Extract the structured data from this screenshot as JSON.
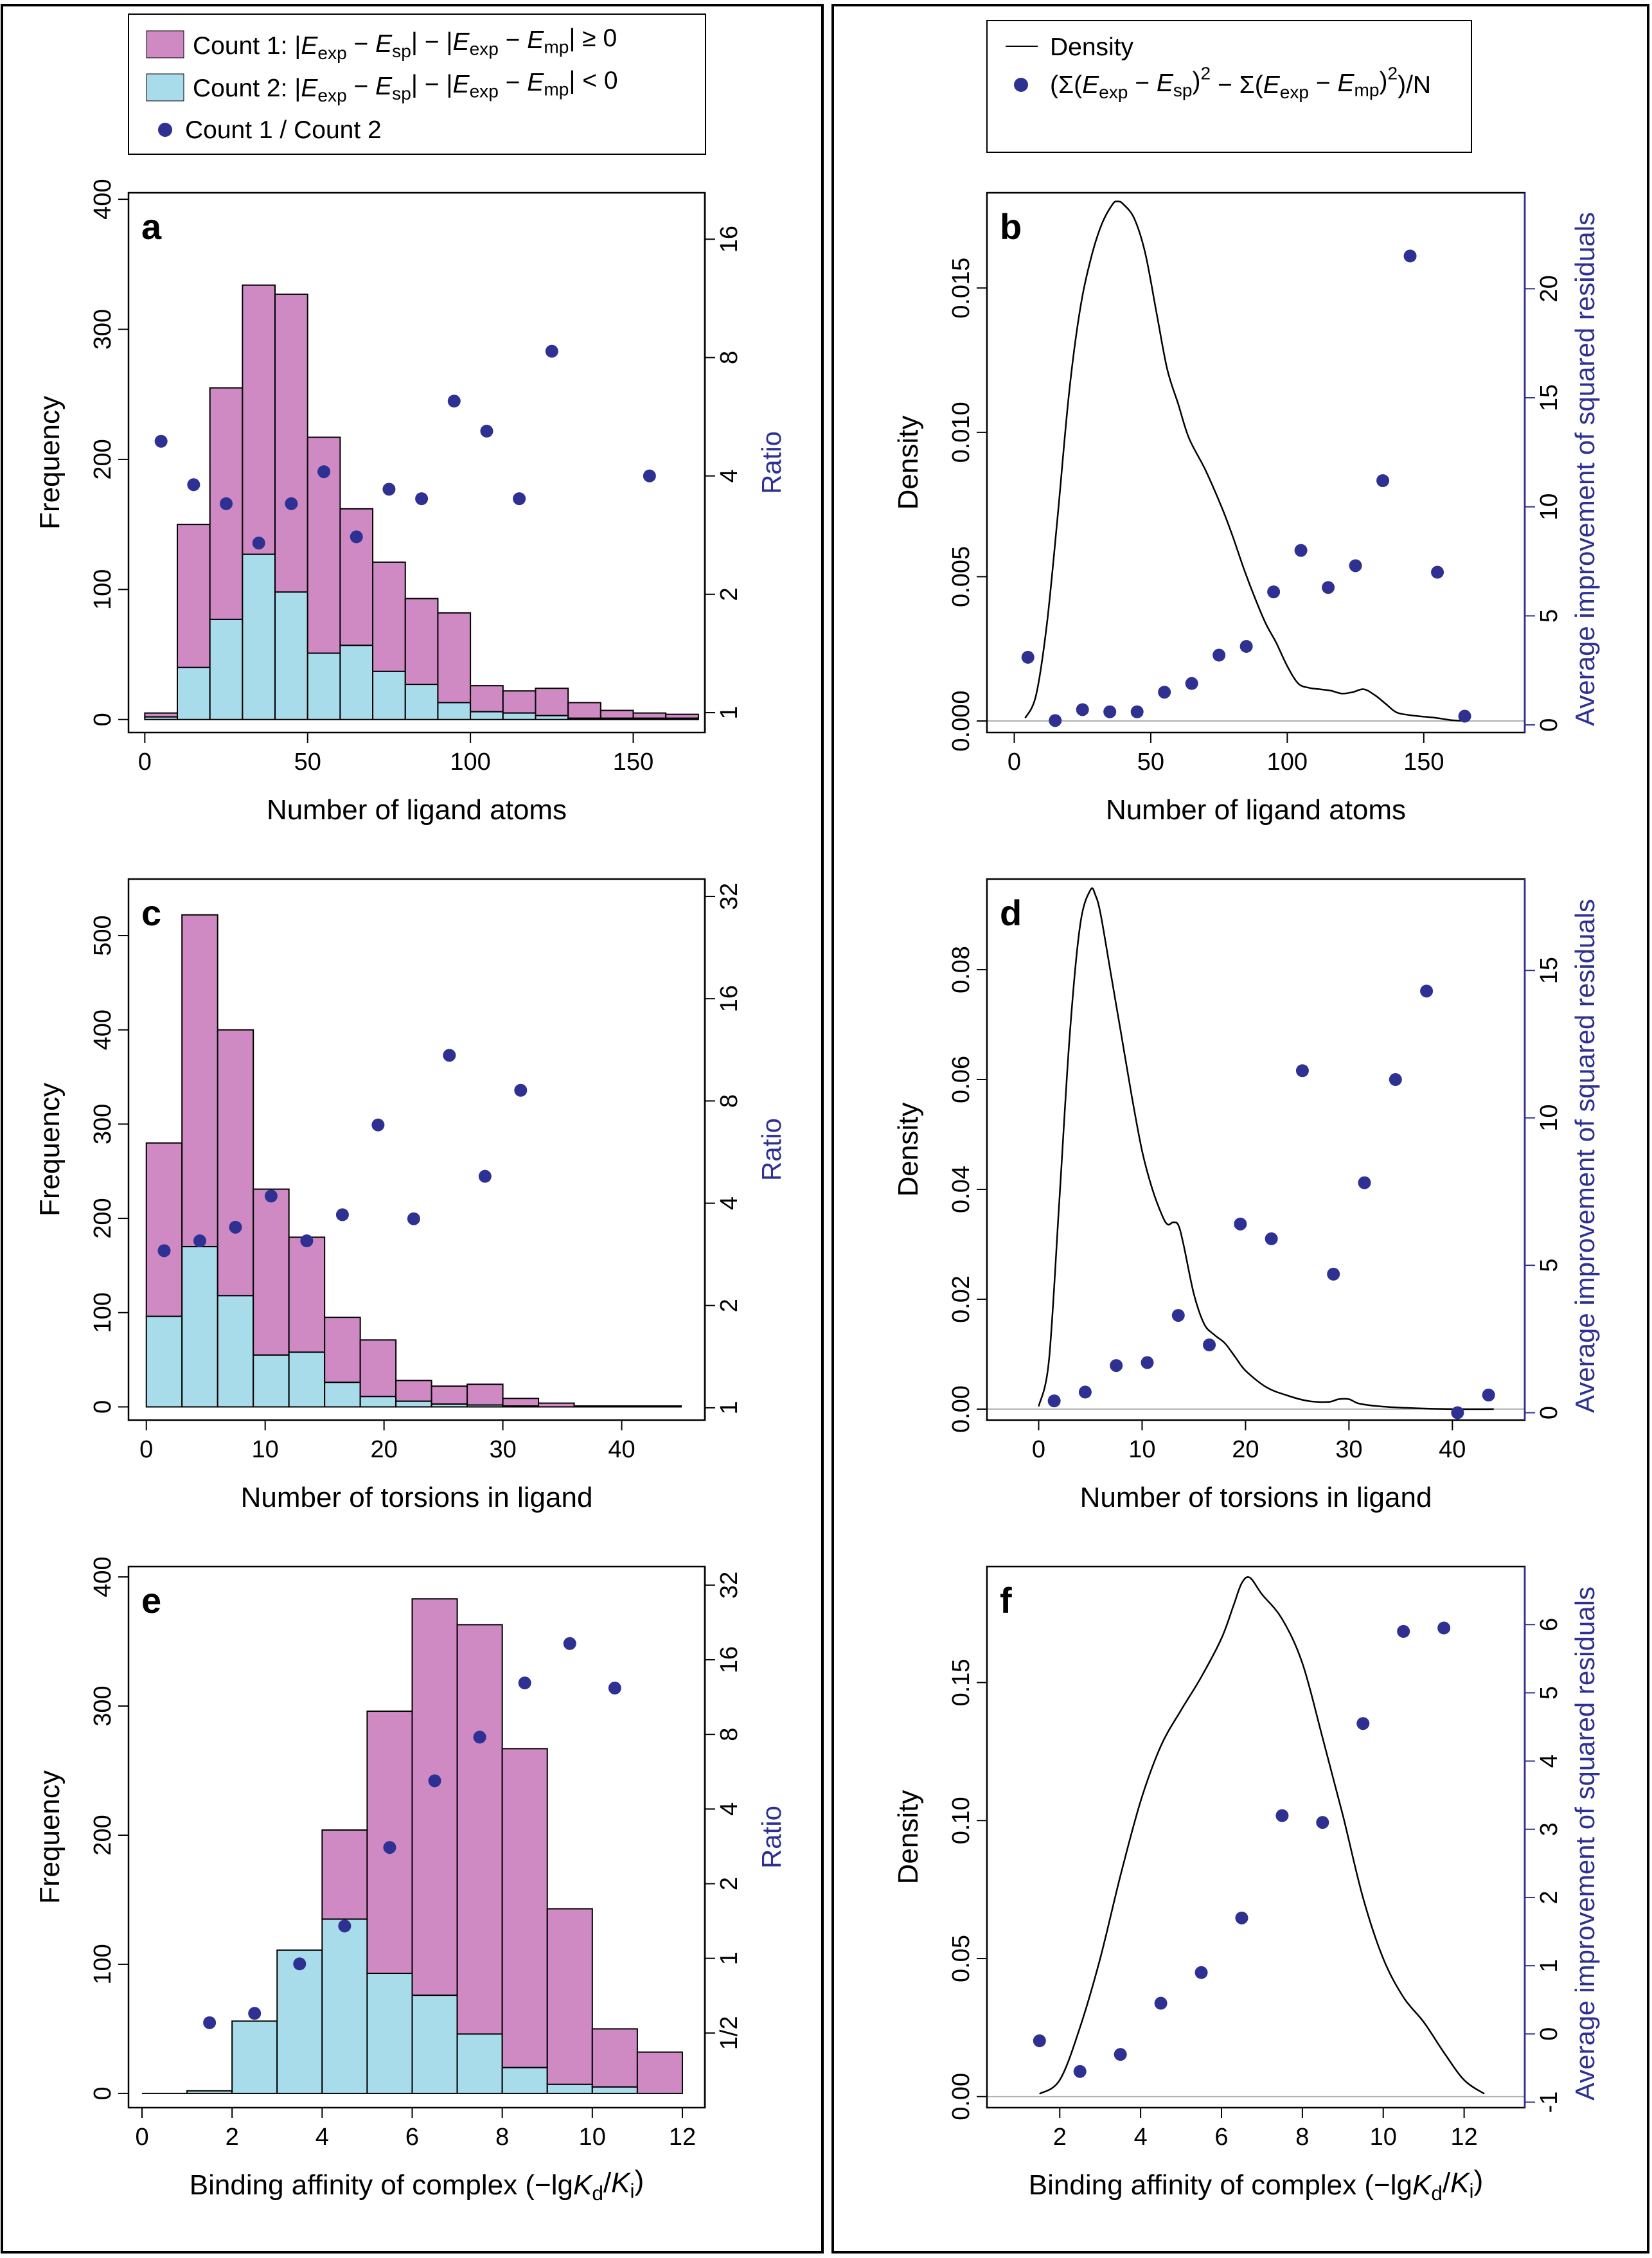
{
  "colors": {
    "count1": "#cf8ac4",
    "count2": "#a9dcea",
    "ratio_point": "#2e3192",
    "density_line": "#000000",
    "right_axis": "#2e3192"
  },
  "legend_left": {
    "count1": "Count 1: |E_exp − E_sp| − |E_exp − E_mp| ≥ 0",
    "count2": "Count 2: |E_exp − E_sp| − |E_exp − E_mp| < 0",
    "ratio": "Count 1 / Count 2"
  },
  "legend_right": {
    "density": "Density",
    "points": "(Σ(E_exp − E_sp)² − Σ(E_exp − E_mp)²)/N"
  },
  "chart_data": [
    {
      "panel": "a",
      "type": "bar",
      "stacked": true,
      "xlabel": "Number of ligand atoms",
      "ylabel": "Frequency",
      "y2label": "Ratio",
      "xlim": [
        -5,
        172
      ],
      "ylim": [
        -10,
        405
      ],
      "x_ticks": [
        0,
        50,
        100,
        150
      ],
      "y_ticks": [
        0,
        100,
        200,
        300,
        400
      ],
      "y2_ticks": [
        1,
        2,
        4,
        8,
        16
      ],
      "y2_scale": "log2",
      "y2lim": [
        0.89,
        21
      ],
      "bins": [
        [
          0,
          10
        ],
        [
          10,
          20
        ],
        [
          20,
          30
        ],
        [
          30,
          40
        ],
        [
          40,
          50
        ],
        [
          50,
          60
        ],
        [
          60,
          70
        ],
        [
          70,
          80
        ],
        [
          80,
          90
        ],
        [
          90,
          100
        ],
        [
          100,
          110
        ],
        [
          110,
          120
        ],
        [
          120,
          130
        ],
        [
          130,
          140
        ],
        [
          140,
          150
        ],
        [
          150,
          160
        ],
        [
          160,
          170
        ]
      ],
      "series": [
        {
          "name": "Count 2",
          "values": [
            2,
            40,
            77,
            127,
            98,
            51,
            57,
            37,
            27,
            13,
            6,
            5,
            3,
            1,
            1,
            1,
            1
          ]
        },
        {
          "name": "Count 1",
          "values": [
            3,
            110,
            178,
            207,
            229,
            166,
            105,
            84,
            66,
            69,
            20,
            17,
            21,
            12,
            6,
            4,
            3
          ]
        }
      ],
      "ratio_points": {
        "x": [
          5,
          15,
          25,
          35,
          45,
          55,
          65,
          75,
          85,
          95,
          105,
          115,
          125,
          155
        ],
        "y": [
          4.9,
          3.8,
          3.4,
          2.7,
          3.4,
          4.1,
          2.8,
          3.7,
          3.5,
          6.2,
          5.2,
          3.5,
          8.3,
          4.0
        ]
      }
    },
    {
      "panel": "b",
      "type": "line",
      "xlabel": "Number of ligand atoms",
      "ylabel": "Density",
      "y2label": "Average improvement of squared residuals",
      "xlim": [
        -10,
        187
      ],
      "ylim": [
        -0.0004,
        0.0183
      ],
      "x_ticks": [
        0,
        50,
        100,
        150
      ],
      "y_ticks": [
        0,
        0.005,
        0.01,
        0.015
      ],
      "y_tick_labels": [
        "0.000",
        "0.005",
        "0.010",
        "0.015"
      ],
      "y2_ticks": [
        0,
        5,
        10,
        15,
        20
      ],
      "y2lim": [
        -0.35,
        24.4
      ],
      "density": {
        "x": [
          4,
          8,
          12,
          16,
          20,
          24,
          28,
          32,
          36,
          38,
          40,
          44,
          48,
          52,
          56,
          60,
          64,
          70,
          76,
          80,
          84,
          88,
          92,
          96,
          100,
          104,
          108,
          112,
          116,
          120,
          124,
          128,
          132,
          136,
          140,
          145,
          150,
          155,
          160,
          166
        ],
        "y": [
          0.0001,
          0.0009,
          0.0034,
          0.0072,
          0.0113,
          0.0142,
          0.016,
          0.0172,
          0.0179,
          0.018,
          0.0179,
          0.0174,
          0.0162,
          0.0142,
          0.0122,
          0.011,
          0.0098,
          0.0087,
          0.0074,
          0.0064,
          0.0053,
          0.0043,
          0.0034,
          0.0027,
          0.0019,
          0.0013,
          0.00115,
          0.0011,
          0.00105,
          0.00095,
          0.001,
          0.0011,
          0.0009,
          0.0006,
          0.0003,
          0.0002,
          0.00015,
          0.0001,
          3e-05,
          0.0
        ]
      },
      "points": {
        "x": [
          5,
          15,
          25,
          35,
          45,
          55,
          65,
          75,
          85,
          95,
          105,
          115,
          125,
          135,
          145,
          155,
          165
        ],
        "y": [
          3.1,
          0.2,
          0.7,
          0.6,
          0.6,
          1.5,
          1.9,
          3.2,
          3.6,
          6.1,
          8.0,
          6.3,
          7.3,
          11.2,
          21.5,
          7.0,
          0.4
        ]
      }
    },
    {
      "panel": "c",
      "type": "bar",
      "stacked": true,
      "xlabel": "Number of torsions in ligand",
      "ylabel": "Frequency",
      "y2label": "Ratio",
      "xlim": [
        -1.5,
        47
      ],
      "ylim": [
        -14,
        560
      ],
      "x_ticks": [
        0,
        10,
        20,
        30,
        40
      ],
      "y_ticks": [
        0,
        100,
        200,
        300,
        400,
        500
      ],
      "y2_ticks": [
        1,
        2,
        4,
        8,
        16,
        32
      ],
      "y2_scale": "log2",
      "y2lim": [
        0.92,
        36
      ],
      "bins": [
        [
          0,
          3
        ],
        [
          3,
          6
        ],
        [
          6,
          9
        ],
        [
          9,
          12
        ],
        [
          12,
          15
        ],
        [
          15,
          18
        ],
        [
          18,
          21
        ],
        [
          21,
          24
        ],
        [
          24,
          27
        ],
        [
          27,
          30
        ],
        [
          30,
          33
        ],
        [
          33,
          36
        ],
        [
          36,
          39
        ],
        [
          39,
          42
        ],
        [
          42,
          45
        ]
      ],
      "series": [
        {
          "name": "Count 2",
          "values": [
            96,
            170,
            118,
            55,
            58,
            26,
            11,
            6,
            3,
            2,
            1,
            0,
            0,
            0,
            0
          ]
        },
        {
          "name": "Count 1",
          "values": [
            184,
            352,
            282,
            176,
            122,
            69,
            60,
            22,
            19,
            22,
            8,
            4,
            1,
            1,
            1
          ]
        }
      ],
      "ratio_points": {
        "x": [
          1.5,
          4.5,
          7.5,
          10.5,
          13.5,
          16.5,
          19.5,
          22.5,
          25.5,
          28.5,
          31.5
        ],
        "y": [
          2.9,
          3.1,
          3.4,
          4.2,
          3.1,
          3.7,
          6.8,
          3.6,
          10.9,
          4.8,
          8.6
        ]
      }
    },
    {
      "panel": "d",
      "type": "line",
      "xlabel": "Number of torsions in ligand",
      "ylabel": "Density",
      "y2label": "Average improvement of squared residuals",
      "xlim": [
        -5,
        47
      ],
      "ylim": [
        -0.002,
        0.0965
      ],
      "x_ticks": [
        0,
        10,
        20,
        30,
        40
      ],
      "y_ticks": [
        0,
        0.02,
        0.04,
        0.06,
        0.08
      ],
      "y_tick_labels": [
        "0.00",
        "0.02",
        "0.04",
        "0.06",
        "0.08"
      ],
      "y2_ticks": [
        0,
        5,
        10,
        15
      ],
      "y2lim": [
        -0.25,
        18.1
      ],
      "density": {
        "x": [
          0,
          1,
          2,
          3,
          4,
          5,
          5.5,
          6,
          7,
          8,
          9,
          10,
          11,
          12,
          12.5,
          13,
          13.5,
          14,
          15,
          16,
          17,
          18,
          19,
          20,
          22,
          24,
          26,
          28,
          29,
          30,
          31,
          33,
          36,
          40,
          44
        ],
        "y": [
          0.0005,
          0.009,
          0.038,
          0.068,
          0.088,
          0.0945,
          0.0935,
          0.09,
          0.079,
          0.068,
          0.057,
          0.047,
          0.04,
          0.035,
          0.0336,
          0.034,
          0.0335,
          0.03,
          0.021,
          0.0155,
          0.0135,
          0.012,
          0.0095,
          0.007,
          0.004,
          0.0025,
          0.0015,
          0.0013,
          0.0018,
          0.0018,
          0.001,
          0.0005,
          0.0002,
          0.0,
          0.0
        ]
      },
      "points": {
        "x": [
          1.5,
          4.5,
          7.5,
          10.5,
          13.5,
          16.5,
          19.5,
          22.5,
          25.5,
          28.5,
          31.5,
          34.5,
          37.5,
          40.5,
          43.5
        ],
        "y": [
          0.4,
          0.7,
          1.6,
          1.7,
          3.3,
          2.3,
          6.4,
          5.9,
          11.6,
          4.7,
          7.8,
          11.3,
          14.3,
          0.0,
          0.6
        ]
      }
    },
    {
      "panel": "e",
      "type": "bar",
      "stacked": true,
      "xlabel": "Binding affinity of complex (−lgK_d/K_i)",
      "ylabel": "Frequency",
      "y2label": "Ratio",
      "xlim": [
        -0.3,
        12.5
      ],
      "ylim": [
        -11,
        408
      ],
      "x_ticks": [
        0,
        2,
        4,
        6,
        8,
        10,
        12
      ],
      "y_ticks": [
        0,
        100,
        200,
        300,
        400
      ],
      "y2_ticks": [
        0.5,
        1,
        2,
        4,
        8,
        16,
        32
      ],
      "y2_tick_labels": [
        "1/2",
        "1",
        "2",
        "4",
        "8",
        "16",
        "32"
      ],
      "y2_scale": "log2",
      "y2lim": [
        0.25,
        38
      ],
      "bins": [
        [
          0,
          1
        ],
        [
          1,
          2
        ],
        [
          2,
          3
        ],
        [
          3,
          4
        ],
        [
          4,
          5
        ],
        [
          5,
          6
        ],
        [
          6,
          7
        ],
        [
          7,
          8
        ],
        [
          8,
          9
        ],
        [
          9,
          10
        ],
        [
          10,
          11
        ],
        [
          11,
          12
        ]
      ],
      "series": [
        {
          "name": "Count 2",
          "values": [
            0,
            2,
            56,
            111,
            135,
            93,
            76,
            46,
            20,
            7,
            5,
            0
          ]
        },
        {
          "name": "Count 1",
          "values": [
            0,
            0,
            0,
            0,
            69,
            203,
            307,
            317,
            247,
            136,
            45,
            32
          ]
        }
      ],
      "ratio_points": {
        "x": [
          1.5,
          2.5,
          3.5,
          4.5,
          5.5,
          6.5,
          7.5,
          8.5,
          9.5,
          10.5
        ],
        "y": [
          0.55,
          0.6,
          0.95,
          1.35,
          2.8,
          5.2,
          7.8,
          12.9,
          18.6,
          12.3
        ]
      }
    },
    {
      "panel": "f",
      "type": "line",
      "xlabel": "Binding affinity of complex (−lgK_d/K_i)",
      "ylabel": "Density",
      "y2label": "Average improvement of squared residuals",
      "xlim": [
        0.2,
        13.5
      ],
      "ylim": [
        -0.004,
        0.192
      ],
      "x_ticks": [
        2,
        4,
        6,
        8,
        10,
        12
      ],
      "y_ticks": [
        0,
        0.05,
        0.1,
        0.15
      ],
      "y_tick_labels": [
        "0.00",
        "0.05",
        "0.10",
        "0.15"
      ],
      "y2_ticks": [
        -1,
        0,
        1,
        2,
        3,
        4,
        5,
        6
      ],
      "y2lim": [
        -1.08,
        6.85
      ],
      "density": {
        "x": [
          1.5,
          2,
          2.5,
          3,
          3.5,
          4,
          4.5,
          5,
          5.5,
          6,
          6.3,
          6.5,
          6.7,
          7,
          7.5,
          8,
          8.5,
          9,
          9.5,
          10,
          10.5,
          11,
          11.5,
          12,
          12.5
        ],
        "y": [
          0.001,
          0.006,
          0.025,
          0.05,
          0.08,
          0.107,
          0.127,
          0.14,
          0.152,
          0.166,
          0.178,
          0.186,
          0.188,
          0.182,
          0.173,
          0.157,
          0.13,
          0.102,
          0.072,
          0.05,
          0.036,
          0.027,
          0.016,
          0.006,
          0.001
        ]
      },
      "points": {
        "x": [
          1.5,
          2.5,
          3.5,
          4.5,
          5.5,
          6.5,
          7.5,
          8.5,
          9.5,
          10.5,
          11.5
        ],
        "y": [
          -0.1,
          -0.55,
          -0.3,
          0.45,
          0.9,
          1.7,
          3.2,
          3.1,
          4.55,
          5.9,
          5.95
        ]
      }
    }
  ]
}
